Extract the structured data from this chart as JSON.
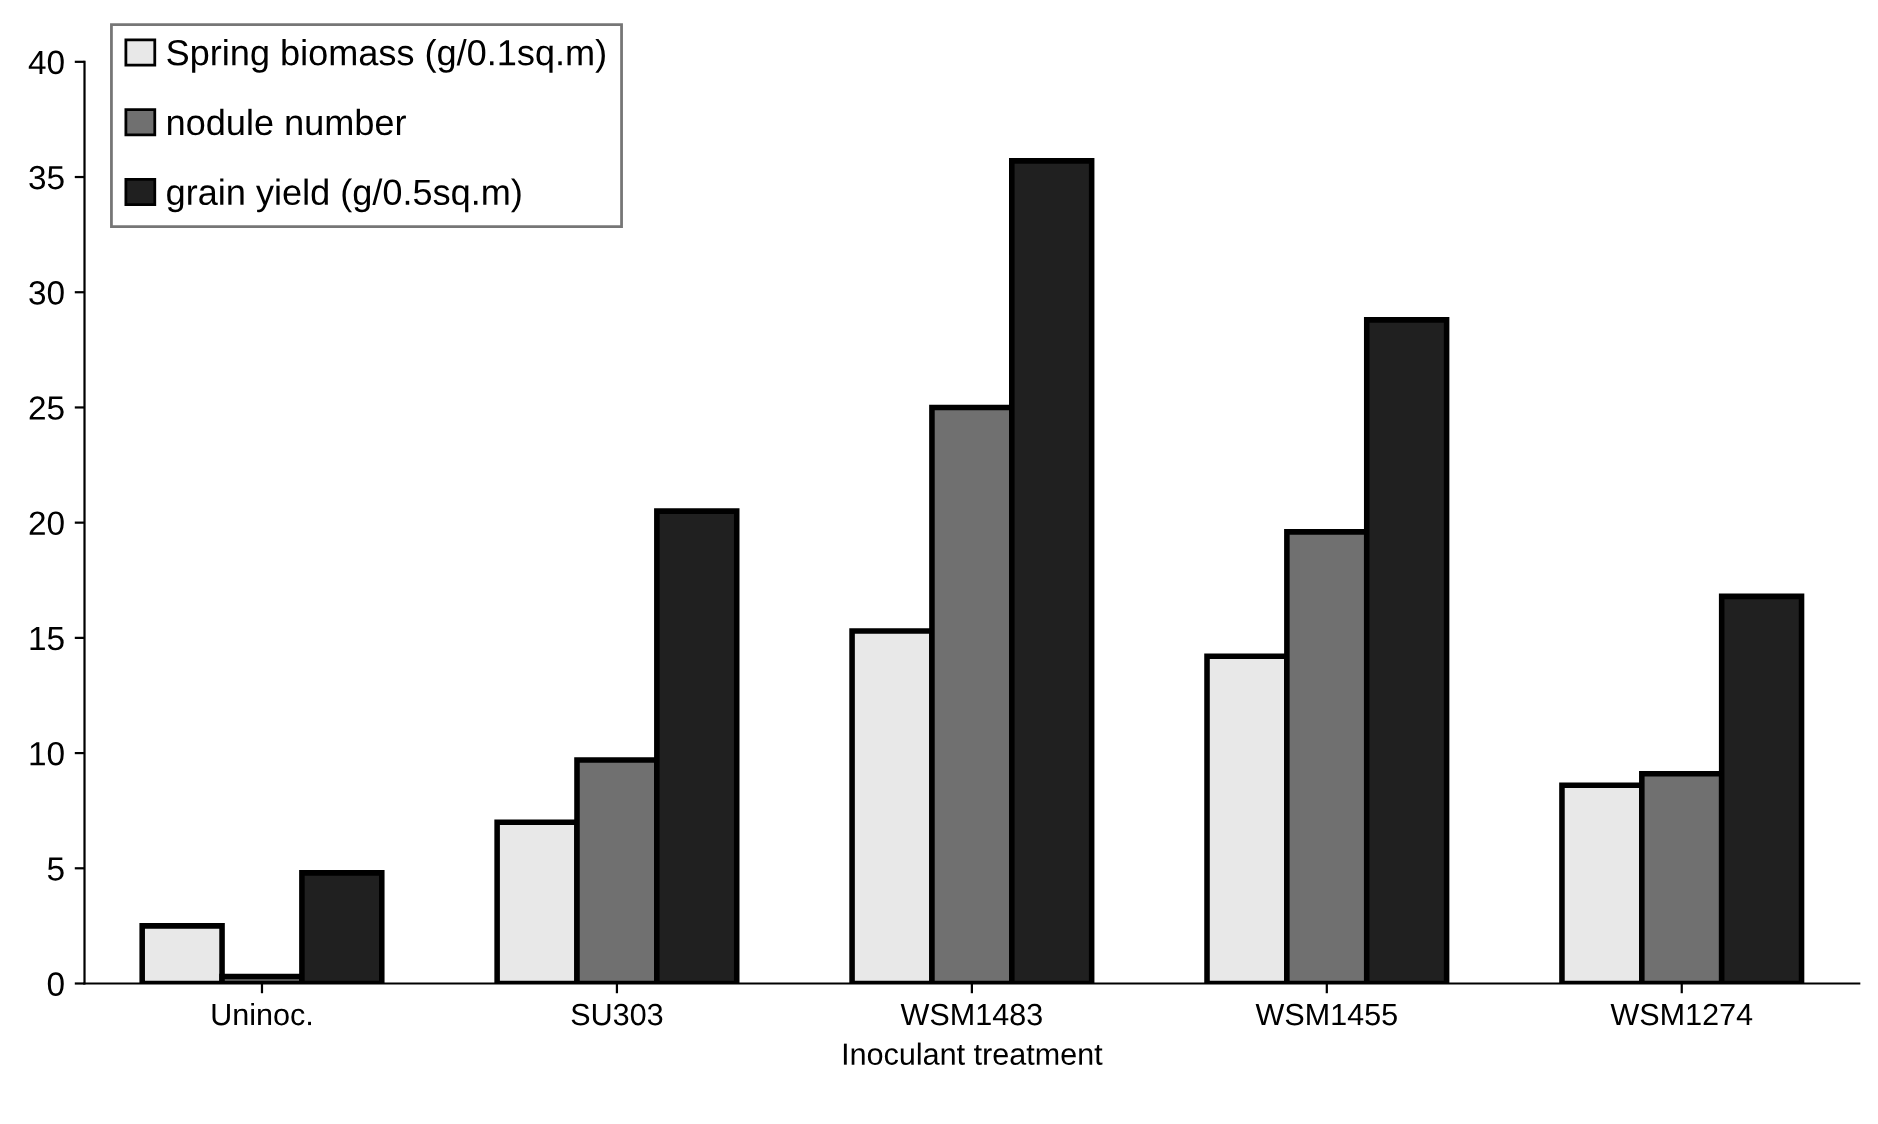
{
  "chart_data": {
    "type": "bar",
    "xlabel": "Inoculant treatment",
    "categories": [
      "Uninoc.",
      "SU303",
      "WSM1483",
      "WSM1455",
      "WSM1274"
    ],
    "series": [
      {
        "name": "Spring biomass (g/0.1sq.m)",
        "color": "#e8e8e8",
        "values": [
          2.5,
          7.0,
          15.3,
          14.2,
          8.6
        ]
      },
      {
        "name": "nodule number",
        "color": "#707070",
        "values": [
          0.3,
          9.7,
          25.0,
          19.6,
          9.1
        ]
      },
      {
        "name": "grain yield (g/0.5sq.m)",
        "color": "#202020",
        "values": [
          4.8,
          20.5,
          35.7,
          28.8,
          16.8
        ]
      }
    ],
    "ylim": [
      0,
      40
    ],
    "yticks": [
      0,
      5,
      10,
      15,
      20,
      25,
      30,
      35,
      40
    ],
    "grid": false,
    "legend": "top left"
  }
}
